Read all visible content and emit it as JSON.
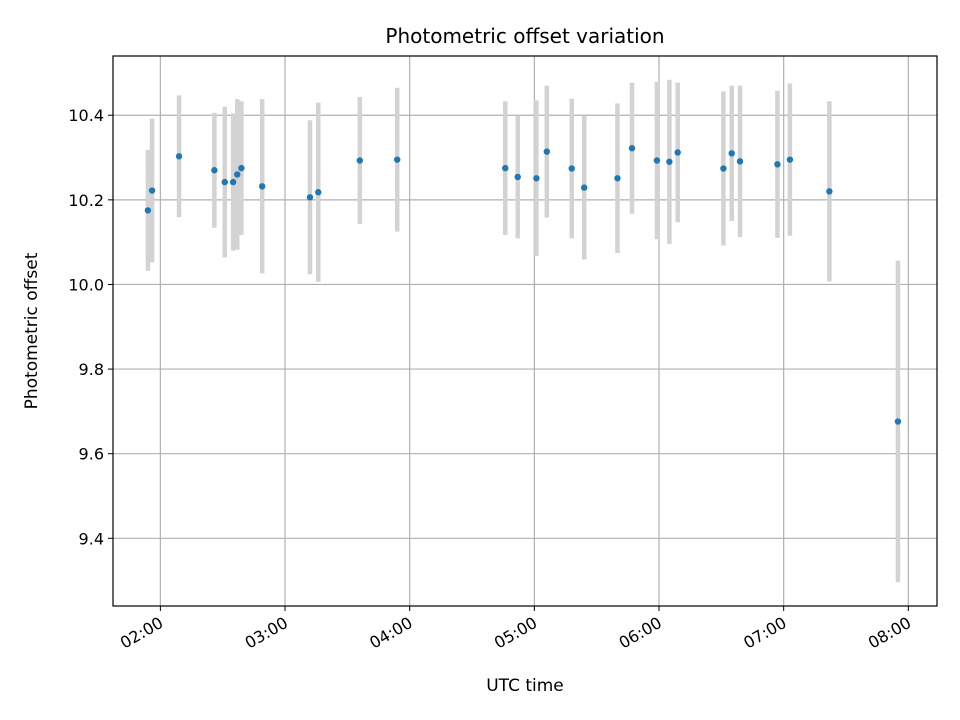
{
  "chart_data": {
    "type": "scatter",
    "title": "Photometric offset variation",
    "xlabel": "UTC time",
    "ylabel": "Photometric offset",
    "x_ticks": [
      "02:00",
      "03:00",
      "04:00",
      "05:00",
      "06:00",
      "07:00",
      "08:00"
    ],
    "x_tick_hours": [
      2,
      3,
      4,
      5,
      6,
      7,
      8
    ],
    "xlim_hours": [
      1.62,
      8.23
    ],
    "y_ticks": [
      "9.4",
      "9.6",
      "9.8",
      "10.0",
      "10.2",
      "10.4"
    ],
    "y_tick_values": [
      9.4,
      9.6,
      9.8,
      10.0,
      10.2,
      10.4
    ],
    "ylim": [
      9.24,
      10.54
    ],
    "grid": true,
    "colors": {
      "point": "#1f77b4",
      "errorbar": "#d3d3d3",
      "grid": "#b0b0b0"
    },
    "points": [
      {
        "t": "01:54",
        "y": 10.175,
        "err": 0.143
      },
      {
        "t": "01:56",
        "y": 10.222,
        "err": 0.17
      },
      {
        "t": "02:09",
        "y": 10.303,
        "err": 0.144
      },
      {
        "t": "02:26",
        "y": 10.27,
        "err": 0.136
      },
      {
        "t": "02:31",
        "y": 10.242,
        "err": 0.178
      },
      {
        "t": "02:35",
        "y": 10.242,
        "err": 0.162
      },
      {
        "t": "02:37",
        "y": 10.26,
        "err": 0.178
      },
      {
        "t": "02:39",
        "y": 10.275,
        "err": 0.158
      },
      {
        "t": "02:49",
        "y": 10.232,
        "err": 0.206
      },
      {
        "t": "03:12",
        "y": 10.206,
        "err": 0.182
      },
      {
        "t": "03:16",
        "y": 10.218,
        "err": 0.212
      },
      {
        "t": "03:36",
        "y": 10.293,
        "err": 0.15
      },
      {
        "t": "03:54",
        "y": 10.295,
        "err": 0.17
      },
      {
        "t": "04:46",
        "y": 10.275,
        "err": 0.158
      },
      {
        "t": "04:52",
        "y": 10.254,
        "err": 0.145
      },
      {
        "t": "05:01",
        "y": 10.251,
        "err": 0.184
      },
      {
        "t": "05:06",
        "y": 10.314,
        "err": 0.156
      },
      {
        "t": "05:18",
        "y": 10.274,
        "err": 0.165
      },
      {
        "t": "05:24",
        "y": 10.229,
        "err": 0.17
      },
      {
        "t": "05:40",
        "y": 10.251,
        "err": 0.177
      },
      {
        "t": "05:47",
        "y": 10.322,
        "err": 0.155
      },
      {
        "t": "05:59",
        "y": 10.293,
        "err": 0.186
      },
      {
        "t": "06:05",
        "y": 10.29,
        "err": 0.194
      },
      {
        "t": "06:09",
        "y": 10.312,
        "err": 0.165
      },
      {
        "t": "06:31",
        "y": 10.274,
        "err": 0.182
      },
      {
        "t": "06:35",
        "y": 10.31,
        "err": 0.16
      },
      {
        "t": "06:39",
        "y": 10.291,
        "err": 0.179
      },
      {
        "t": "06:57",
        "y": 10.284,
        "err": 0.174
      },
      {
        "t": "07:03",
        "y": 10.295,
        "err": 0.18
      },
      {
        "t": "07:22",
        "y": 10.22,
        "err": 0.213
      },
      {
        "t": "07:55",
        "y": 9.676,
        "err": 0.38
      }
    ]
  }
}
